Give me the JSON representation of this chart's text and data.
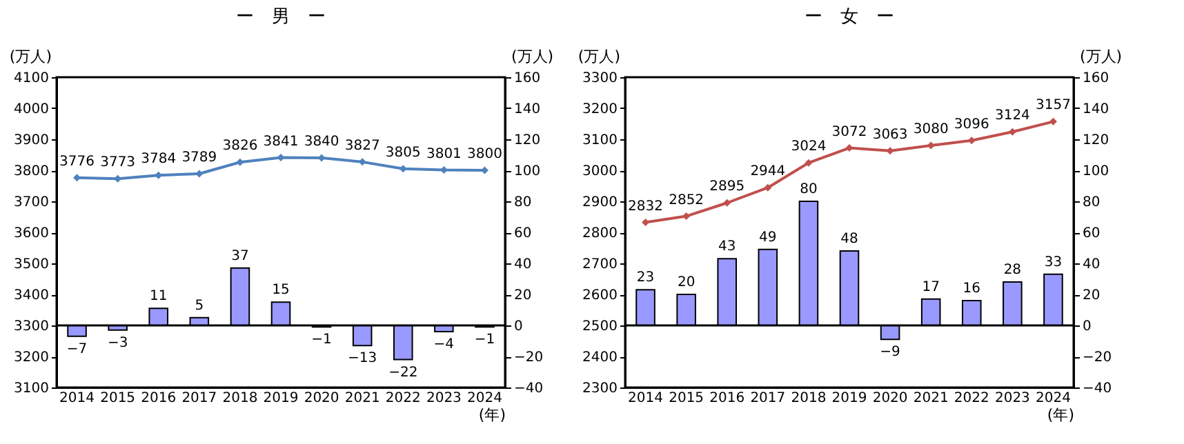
{
  "chart_data": [
    {
      "type": "line",
      "title": "ー　男　ー",
      "ylabel": "(万人)",
      "y2label": "(万人)",
      "xlabel": "(年)",
      "categories": [
        "2014",
        "2015",
        "2016",
        "2017",
        "2018",
        "2019",
        "2020",
        "2021",
        "2022",
        "2023",
        "2024"
      ],
      "series": [
        {
          "color": "#4f81bd",
          "values": [
            3776,
            3773,
            3784,
            3789,
            3826,
            3841,
            3840,
            3827,
            3805,
            3801,
            3800
          ]
        },
        {
          "type": "bar",
          "axis": "y2",
          "color": "#9999ff",
          "values": [
            -7,
            -3,
            11,
            5,
            37,
            15,
            -1,
            -13,
            -22,
            -4,
            -1
          ]
        }
      ],
      "ylim": [
        3100,
        4100
      ],
      "yticks": [
        3100,
        3200,
        3300,
        3400,
        3500,
        3600,
        3700,
        3800,
        3900,
        4000,
        4100
      ],
      "y2lim": [
        -40,
        160
      ],
      "y2ticks": [
        -40,
        -20,
        0,
        20,
        40,
        60,
        80,
        100,
        120,
        140,
        160
      ],
      "ref_lines": [
        {
          "axis": "y2",
          "value": 0,
          "color": "#000000"
        }
      ],
      "data_labels": true,
      "grid": false,
      "marker": "diamond",
      "line_style": "solid"
    },
    {
      "type": "line",
      "title": "ー　女　ー",
      "ylabel": "(万人)",
      "y2label": "(万人)",
      "xlabel": "(年)",
      "categories": [
        "2014",
        "2015",
        "2016",
        "2017",
        "2018",
        "2019",
        "2020",
        "2021",
        "2022",
        "2023",
        "2024"
      ],
      "series": [
        {
          "color": "#c0504d",
          "values": [
            2832,
            2852,
            2895,
            2944,
            3024,
            3072,
            3063,
            3080,
            3096,
            3124,
            3157
          ]
        },
        {
          "type": "bar",
          "axis": "y2",
          "color": "#9999ff",
          "values": [
            23,
            20,
            43,
            49,
            80,
            48,
            -9,
            17,
            16,
            28,
            33
          ]
        }
      ],
      "ylim": [
        2300,
        3300
      ],
      "yticks": [
        2300,
        2400,
        2500,
        2600,
        2700,
        2800,
        2900,
        3000,
        3100,
        3200,
        3300
      ],
      "y2lim": [
        -40,
        160
      ],
      "y2ticks": [
        -40,
        -20,
        0,
        20,
        40,
        60,
        80,
        100,
        120,
        140,
        160
      ],
      "ref_lines": [
        {
          "axis": "y2",
          "value": 0,
          "color": "#000000"
        }
      ],
      "data_labels": true,
      "grid": false,
      "marker": "diamond",
      "line_style": "solid"
    }
  ]
}
